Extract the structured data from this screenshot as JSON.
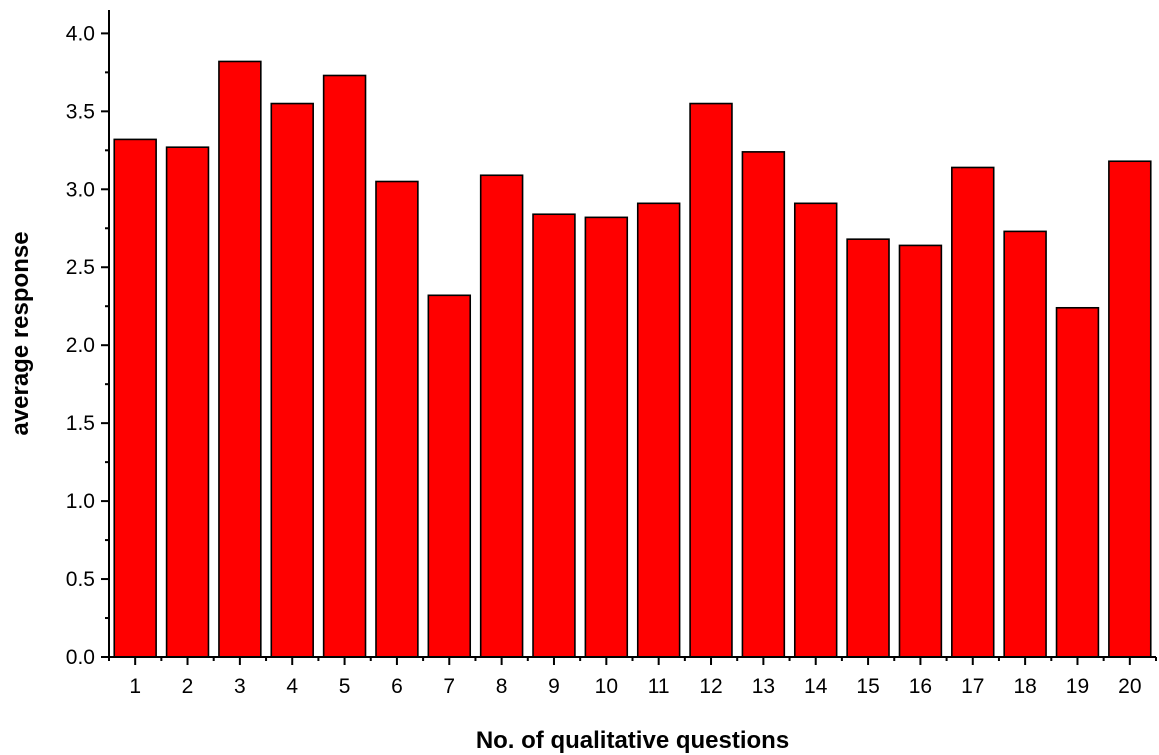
{
  "chart_data": {
    "type": "bar",
    "title": "",
    "xlabel": "No. of qualitative questions",
    "ylabel": "average response",
    "categories": [
      "1",
      "2",
      "3",
      "4",
      "5",
      "6",
      "7",
      "8",
      "9",
      "10",
      "11",
      "12",
      "13",
      "14",
      "15",
      "16",
      "17",
      "18",
      "19",
      "20"
    ],
    "values": [
      3.32,
      3.27,
      3.82,
      3.55,
      3.73,
      3.05,
      2.32,
      3.09,
      2.84,
      2.82,
      2.91,
      3.55,
      3.24,
      2.91,
      2.68,
      2.64,
      3.14,
      2.73,
      2.24,
      3.18
    ],
    "ylim": [
      0,
      4.15
    ],
    "yticks": [
      "0.0",
      "0.5",
      "1.0",
      "1.5",
      "2.0",
      "2.5",
      "3.0",
      "3.5",
      "4.0"
    ],
    "bar_color": "#ff0000",
    "grid": false,
    "legend": "none"
  }
}
